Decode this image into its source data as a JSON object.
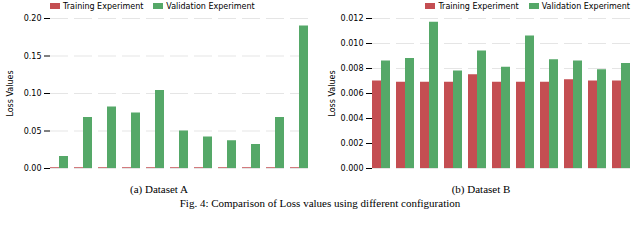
{
  "chart_data": [
    {
      "type": "bar",
      "title": "(a) Dataset A",
      "categories": [
        null,
        null,
        null,
        null,
        null,
        null,
        null,
        null,
        null,
        null,
        null
      ],
      "y_label": "Loss Values",
      "series": [
        {
          "name": "Training Experiment",
          "color": "#c44e52",
          "values": [
            0.001,
            0.001,
            0.001,
            0.001,
            0.001,
            0.001,
            0.001,
            0.001,
            0.001,
            0.001,
            0.001
          ]
        },
        {
          "name": "Validation Experiment",
          "color": "#55a868",
          "values": [
            0.016,
            0.068,
            0.082,
            0.074,
            0.104,
            0.05,
            0.042,
            0.037,
            0.032,
            0.068,
            0.19
          ]
        }
      ],
      "ylim": [
        0,
        0.2
      ],
      "yticks": [
        {
          "value": 0,
          "label": "0.00"
        },
        {
          "value": 0.05,
          "label": "0.05"
        },
        {
          "value": 0.1,
          "label": "0.10"
        },
        {
          "value": 0.15,
          "label": "0.15"
        },
        {
          "value": 0.2,
          "label": "0.20"
        }
      ],
      "grid": true,
      "legend": "upper left",
      "tick_labels": "y"
    },
    {
      "type": "bar",
      "title": "(b) Dataset B",
      "categories": [
        null,
        null,
        null,
        null,
        null,
        null,
        null,
        null,
        null,
        null,
        null
      ],
      "y_label": "Loss Values",
      "series": [
        {
          "name": "Training Experiment",
          "color": "#c44e52",
          "values": [
            0.007,
            0.0069,
            0.0069,
            0.0069,
            0.0075,
            0.0069,
            0.0069,
            0.0069,
            0.0071,
            0.007,
            0.007
          ]
        },
        {
          "name": "Validation Experiment",
          "color": "#55a868",
          "values": [
            0.0086,
            0.0088,
            0.0117,
            0.0078,
            0.0094,
            0.0081,
            0.0106,
            0.0087,
            0.0086,
            0.0079,
            0.0084
          ]
        }
      ],
      "ylim": [
        0,
        0.012
      ],
      "yticks": [
        {
          "value": 0,
          "label": "0.000"
        },
        {
          "value": 0.002,
          "label": "0.002"
        },
        {
          "value": 0.004,
          "label": "0.004"
        },
        {
          "value": 0.006,
          "label": "0.006"
        },
        {
          "value": 0.008,
          "label": "0.008"
        },
        {
          "value": 0.01,
          "label": "0.010"
        },
        {
          "value": 0.012,
          "label": "0.012"
        }
      ],
      "grid": true,
      "legend": "upper right",
      "tick_labels": "y"
    }
  ],
  "caption": "Fig. 4: Comparison of Loss values using different configuration"
}
